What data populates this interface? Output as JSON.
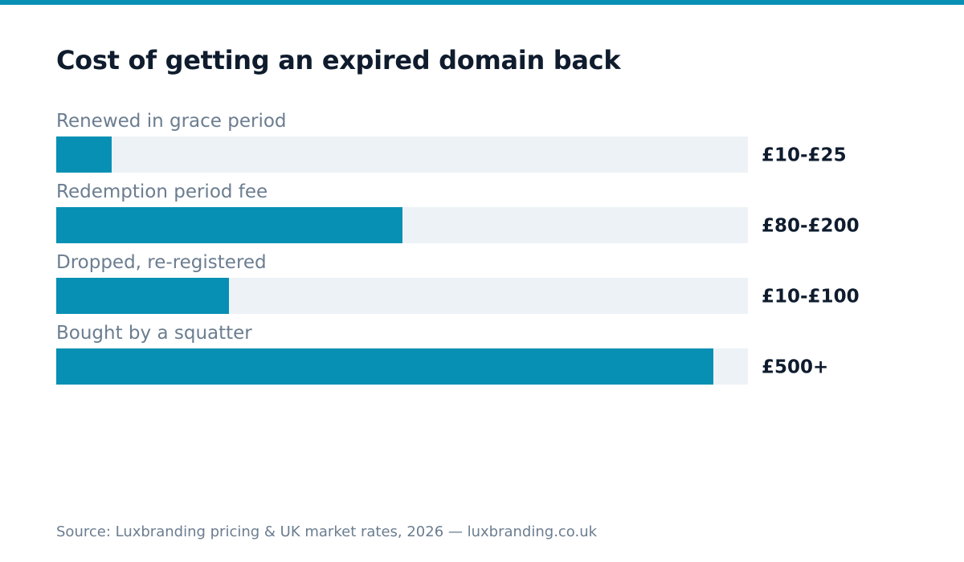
{
  "colors": {
    "accent": "#0890b4",
    "track": "#edf2f6",
    "label": "#6b7d90",
    "value": "#0f1c2e"
  },
  "chart_data": {
    "type": "bar",
    "orientation": "horizontal",
    "title": "Cost of getting an expired domain back",
    "categories": [
      "Renewed in grace period",
      "Redemption period fee",
      "Dropped, re-registered",
      "Bought by a squatter"
    ],
    "value_labels": [
      "£10-£25",
      "£80-£200",
      "£10-£100",
      "£500+"
    ],
    "values": [
      0.08,
      0.5,
      0.25,
      0.95
    ],
    "axis": {
      "visible": false
    },
    "grid": false,
    "legend": "none"
  },
  "footer": {
    "source": "Source: Luxbranding pricing & UK market rates, 2026 — luxbranding.co.uk"
  }
}
